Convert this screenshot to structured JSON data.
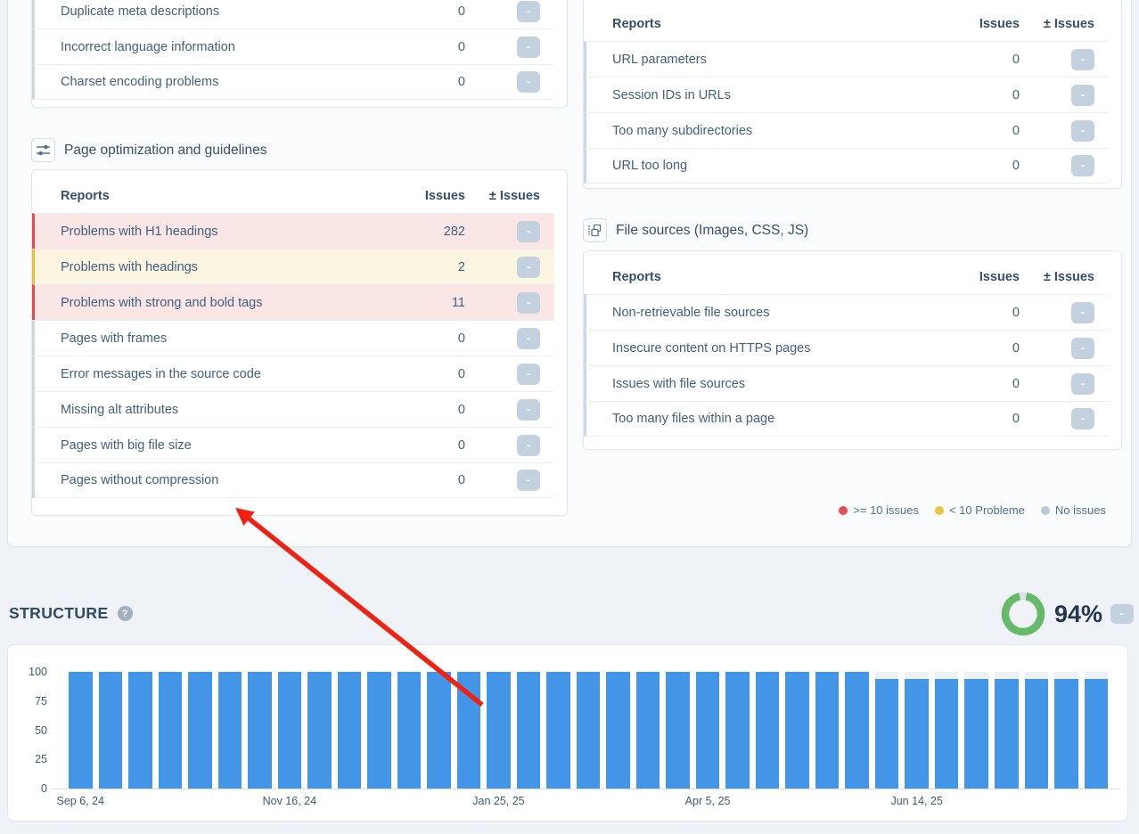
{
  "ui": {
    "minus": "-"
  },
  "colors": {
    "severity_red": "#dc5050",
    "severity_red_bg": "#fbe6e6",
    "severity_yellow": "#e6c13e",
    "severity_yellow_bg": "#fcf5e1",
    "bar_blue": "#4295e7",
    "donut_green": "#64ba69",
    "arrow_red": "#ee2213",
    "legend_red": "#e84c4c",
    "legend_yellow": "#ecc33d",
    "legend_gray": "#b9c9da"
  },
  "technical_table": {
    "rows": [
      {
        "label": "Duplicate meta descriptions",
        "value": "0",
        "severity": "none"
      },
      {
        "label": "Incorrect language information",
        "value": "0",
        "severity": "none"
      },
      {
        "label": "Charset encoding problems",
        "value": "0",
        "severity": "none"
      }
    ]
  },
  "page_optimization": {
    "title": "Page optimization and guidelines",
    "table": {
      "headers": {
        "reports": "Reports",
        "issues": "Issues",
        "delta": "± Issues"
      },
      "rows": [
        {
          "label": "Problems with H1 headings",
          "value": "282",
          "severity": "red"
        },
        {
          "label": "Problems with headings",
          "value": "2",
          "severity": "yellow"
        },
        {
          "label": "Problems with strong and bold tags",
          "value": "11",
          "severity": "red"
        },
        {
          "label": "Pages with frames",
          "value": "0",
          "severity": "none"
        },
        {
          "label": "Error messages in the source code",
          "value": "0",
          "severity": "none"
        },
        {
          "label": "Missing alt attributes",
          "value": "0",
          "severity": "none"
        },
        {
          "label": "Pages with big file size",
          "value": "0",
          "severity": "none"
        },
        {
          "label": "Pages without compression",
          "value": "0",
          "severity": "none"
        }
      ]
    }
  },
  "url_table": {
    "headers": {
      "reports": "Reports",
      "issues": "Issues",
      "delta": "± Issues"
    },
    "rows": [
      {
        "label": "URL parameters",
        "value": "0",
        "severity": "none"
      },
      {
        "label": "Session IDs in URLs",
        "value": "0",
        "severity": "none"
      },
      {
        "label": "Too many subdirectories",
        "value": "0",
        "severity": "none"
      },
      {
        "label": "URL too long",
        "value": "0",
        "severity": "none"
      }
    ]
  },
  "file_sources": {
    "title": "File sources (Images, CSS, JS)",
    "table": {
      "headers": {
        "reports": "Reports",
        "issues": "Issues",
        "delta": "± Issues"
      },
      "rows": [
        {
          "label": "Non-retrievable file sources",
          "value": "0",
          "severity": "none"
        },
        {
          "label": "Insecure content on HTTPS pages",
          "value": "0",
          "severity": "none"
        },
        {
          "label": "Issues with file sources",
          "value": "0",
          "severity": "none"
        },
        {
          "label": "Too many files within a page",
          "value": "0",
          "severity": "none"
        }
      ]
    }
  },
  "legend": [
    {
      "label": ">= 10 issues",
      "color": "#e84c4c"
    },
    {
      "label": "< 10 Probleme",
      "color": "#ecc33d"
    },
    {
      "label": "No issues",
      "color": "#b9c9da"
    }
  ],
  "structure": {
    "title": "STRUCTURE",
    "help": "?",
    "score_label": "94%",
    "score_pct": 94
  },
  "chart_data": {
    "type": "bar",
    "title": "",
    "xlabel": "",
    "ylabel": "",
    "ylim": [
      0,
      100
    ],
    "yticks": [
      0,
      25,
      50,
      75,
      100
    ],
    "grid": false,
    "values": [
      100,
      100,
      100,
      100,
      100,
      100,
      100,
      100,
      100,
      100,
      100,
      100,
      100,
      100,
      100,
      100,
      100,
      100,
      100,
      100,
      100,
      100,
      100,
      100,
      100,
      100,
      100,
      94,
      94,
      94,
      94,
      94,
      94,
      94,
      94
    ],
    "tick_labels": [
      "Sep 6, 24",
      "Nov 16, 24",
      "Jan 25, 25",
      "Apr 5, 25",
      "Jun 14, 25"
    ],
    "tick_indices": [
      0,
      7,
      14,
      21,
      28
    ],
    "bar_color": "#4295e7",
    "remainder_color": "#edf0f4"
  }
}
